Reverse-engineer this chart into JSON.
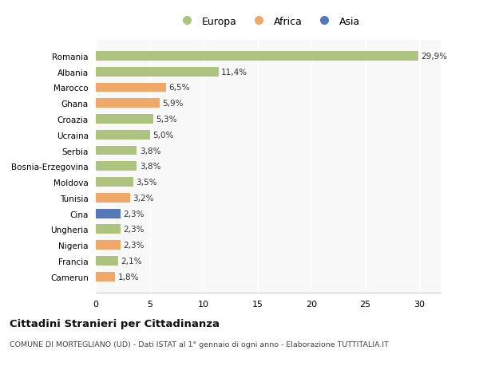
{
  "categories": [
    "Camerun",
    "Francia",
    "Nigeria",
    "Ungheria",
    "Cina",
    "Tunisia",
    "Moldova",
    "Bosnia-Erzegovina",
    "Serbia",
    "Ucraina",
    "Croazia",
    "Ghana",
    "Marocco",
    "Albania",
    "Romania"
  ],
  "values": [
    1.8,
    2.1,
    2.3,
    2.3,
    2.3,
    3.2,
    3.5,
    3.8,
    3.8,
    5.0,
    5.3,
    5.9,
    6.5,
    11.4,
    29.9
  ],
  "labels": [
    "1,8%",
    "2,1%",
    "2,3%",
    "2,3%",
    "2,3%",
    "3,2%",
    "3,5%",
    "3,8%",
    "3,8%",
    "5,0%",
    "5,3%",
    "5,9%",
    "6,5%",
    "11,4%",
    "29,9%"
  ],
  "continent": [
    "Africa",
    "Europa",
    "Africa",
    "Europa",
    "Asia",
    "Africa",
    "Europa",
    "Europa",
    "Europa",
    "Europa",
    "Europa",
    "Africa",
    "Africa",
    "Europa",
    "Europa"
  ],
  "colors": {
    "Europa": "#aec47e",
    "Africa": "#f0a868",
    "Asia": "#5578b8"
  },
  "legend_labels": [
    "Europa",
    "Africa",
    "Asia"
  ],
  "legend_colors": [
    "#aec47e",
    "#f0a868",
    "#5578b8"
  ],
  "title": "Cittadini Stranieri per Cittadinanza",
  "subtitle": "COMUNE DI MORTEGLIANO (UD) - Dati ISTAT al 1° gennaio di ogni anno - Elaborazione TUTTITALIA.IT",
  "xlim": [
    0,
    32
  ],
  "xticks": [
    0,
    5,
    10,
    15,
    20,
    25,
    30
  ],
  "plot_bg": "#f8f8f8",
  "fig_bg": "#ffffff",
  "bar_height": 0.6
}
